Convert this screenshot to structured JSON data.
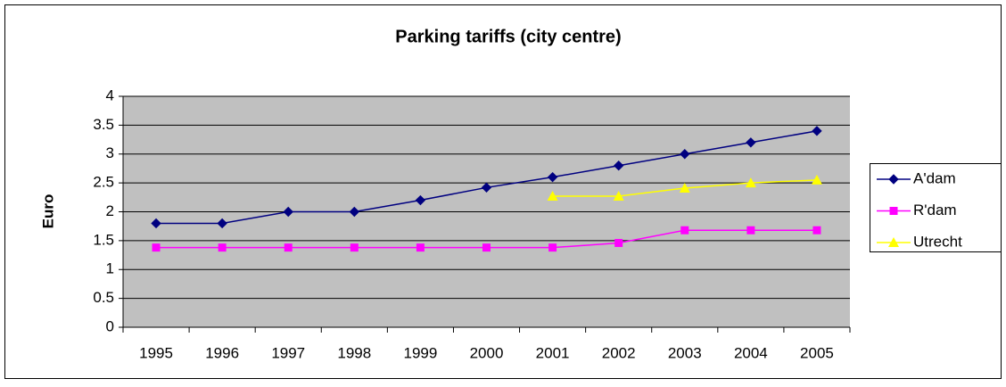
{
  "chart_data": {
    "type": "line",
    "title": "Parking tariffs (city centre)",
    "y_label": "Euro",
    "categories": [
      "1995",
      "1996",
      "1997",
      "1998",
      "1999",
      "2000",
      "2001",
      "2002",
      "2003",
      "2004",
      "2005"
    ],
    "series": [
      {
        "name": "A'dam",
        "color": "#000080",
        "marker": "diamond",
        "values": [
          1.8,
          1.8,
          2.0,
          2.0,
          2.2,
          2.42,
          2.6,
          2.8,
          3.0,
          3.2,
          3.4
        ]
      },
      {
        "name": "R'dam",
        "color": "#ff00ff",
        "marker": "square",
        "values": [
          1.38,
          1.38,
          1.38,
          1.38,
          1.38,
          1.38,
          1.38,
          1.46,
          1.68,
          1.68,
          1.68
        ]
      },
      {
        "name": "Utrecht",
        "color": "#ffff00",
        "marker": "triangle",
        "values": [
          null,
          null,
          null,
          null,
          null,
          null,
          2.27,
          2.27,
          2.41,
          2.5,
          2.55
        ]
      }
    ],
    "ylim": [
      0,
      4
    ],
    "yticks": [
      0,
      0.5,
      1,
      1.5,
      2,
      2.5,
      3,
      3.5,
      4
    ],
    "grid": true,
    "legend": "right"
  }
}
